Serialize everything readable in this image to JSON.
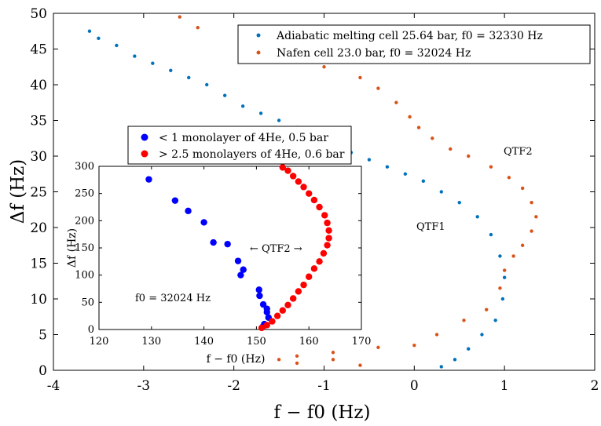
{
  "chart_data": [
    {
      "type": "scatter",
      "xlabel": "f − f0 (Hz)",
      "ylabel": "Δf (Hz)",
      "xlim": [
        -4,
        2
      ],
      "ylim": [
        0,
        50
      ],
      "xticks": [
        "-4",
        "-3",
        "-2",
        "-1",
        "0",
        "1",
        "2"
      ],
      "yticks": [
        "0",
        "5",
        "10",
        "15",
        "20",
        "25",
        "30",
        "35",
        "40",
        "45",
        "50"
      ],
      "legend": {
        "placement": "top-right",
        "entries": [
          "Adiabatic melting cell 25.64 bar, f0 = 32330 Hz",
          "Nafen cell 23.0 bar, f0 = 32024 Hz"
        ]
      },
      "annotations": [
        "QTF1",
        "QTF2"
      ],
      "series": [
        {
          "name": "Adiabatic melting cell 25.64 bar, f0 = 32330 Hz",
          "color": "#0072bd",
          "points": [
            [
              -3.6,
              47.5
            ],
            [
              -3.5,
              46.5
            ],
            [
              -3.3,
              45.5
            ],
            [
              -3.1,
              44
            ],
            [
              -2.9,
              43
            ],
            [
              -2.7,
              42
            ],
            [
              -2.5,
              41
            ],
            [
              -2.3,
              40
            ],
            [
              -2.1,
              38.5
            ],
            [
              -1.9,
              37
            ],
            [
              -1.7,
              36
            ],
            [
              -1.5,
              35
            ],
            [
              -1.3,
              34
            ],
            [
              -1.1,
              33
            ],
            [
              -0.9,
              31.5
            ],
            [
              -0.7,
              30.5
            ],
            [
              -0.5,
              29.5
            ],
            [
              -0.3,
              28.5
            ],
            [
              -0.1,
              27.5
            ],
            [
              0.1,
              26.5
            ],
            [
              0.3,
              25
            ],
            [
              0.5,
              23.5
            ],
            [
              0.7,
              21.5
            ],
            [
              0.85,
              19
            ],
            [
              0.95,
              16
            ],
            [
              1.0,
              13
            ],
            [
              0.98,
              10
            ],
            [
              0.9,
              7
            ],
            [
              0.75,
              5
            ],
            [
              0.6,
              3
            ],
            [
              0.45,
              1.5
            ],
            [
              0.3,
              0.5
            ]
          ]
        },
        {
          "name": "Nafen cell 23.0 bar, f0 = 32024 Hz",
          "color": "#d95319",
          "points": [
            [
              -2.6,
              49.5
            ],
            [
              -2.4,
              48
            ],
            [
              -1.9,
              46
            ],
            [
              -1.4,
              44.5
            ],
            [
              -1.0,
              42.5
            ],
            [
              -0.6,
              41
            ],
            [
              -0.4,
              39.5
            ],
            [
              -0.2,
              37.5
            ],
            [
              -0.05,
              35.5
            ],
            [
              0.05,
              34
            ],
            [
              0.2,
              32.5
            ],
            [
              0.4,
              31
            ],
            [
              0.6,
              30
            ],
            [
              0.85,
              28.5
            ],
            [
              1.05,
              27
            ],
            [
              1.2,
              25.5
            ],
            [
              1.3,
              23.5
            ],
            [
              1.35,
              21.5
            ],
            [
              1.3,
              19.5
            ],
            [
              1.2,
              17.5
            ],
            [
              1.1,
              16
            ],
            [
              1.0,
              14
            ],
            [
              0.95,
              11.5
            ],
            [
              0.8,
              8.5
            ],
            [
              0.55,
              7
            ],
            [
              0.25,
              5
            ],
            [
              0.0,
              3.5
            ],
            [
              -0.4,
              3.2
            ],
            [
              -0.9,
              2.5
            ],
            [
              -1.3,
              2
            ],
            [
              -1.5,
              1.5
            ],
            [
              -1.3,
              1
            ],
            [
              -0.9,
              1.5
            ],
            [
              -0.6,
              0.7
            ]
          ]
        }
      ]
    },
    {
      "type": "scatter",
      "xlabel": "f − f0 (Hz)",
      "ylabel": "Δf (Hz)",
      "xlim": [
        120,
        170
      ],
      "ylim": [
        0,
        300
      ],
      "xticks": [
        "120",
        "130",
        "140",
        "150",
        "160",
        "170"
      ],
      "yticks": [
        "0",
        "50",
        "100",
        "150",
        "200",
        "250",
        "300"
      ],
      "legend": {
        "placement": "top",
        "entries": [
          "< 1 monolayer of 4He, 0.5 bar",
          "> 2.5 monolayers of 4He, 0.6 bar"
        ]
      },
      "annotations": [
        "← QTF2 →",
        "f0 = 32024 Hz"
      ],
      "series": [
        {
          "name": "< 1 monolayer of 4He, 0.5 bar",
          "color": "#0000ff",
          "points": [
            [
              129.5,
              276
            ],
            [
              134.5,
              237
            ],
            [
              137,
              218
            ],
            [
              140,
              197
            ],
            [
              141.8,
              160
            ],
            [
              144.5,
              157
            ],
            [
              146.5,
              126
            ],
            [
              147.5,
              110
            ],
            [
              147,
              100
            ],
            [
              150.5,
              73
            ],
            [
              150.6,
              62
            ],
            [
              151.3,
              46
            ],
            [
              152,
              38
            ],
            [
              152,
              32
            ],
            [
              152.3,
              22
            ],
            [
              151.5,
              10
            ],
            [
              151.2,
              5
            ]
          ]
        },
        {
          "name": "> 2.5 monolayers of 4He, 0.6 bar",
          "color": "#ff0000",
          "points": [
            [
              151,
              3
            ],
            [
              152,
              8
            ],
            [
              153,
              15
            ],
            [
              154,
              25
            ],
            [
              155,
              35
            ],
            [
              156,
              45
            ],
            [
              157,
              57
            ],
            [
              158,
              70
            ],
            [
              159,
              82
            ],
            [
              160,
              97
            ],
            [
              161,
              112
            ],
            [
              162,
              125
            ],
            [
              162.8,
              140
            ],
            [
              163.5,
              155
            ],
            [
              163.8,
              168
            ],
            [
              163.8,
              182
            ],
            [
              163.5,
              196
            ],
            [
              163,
              210
            ],
            [
              162,
              225
            ],
            [
              161,
              238
            ],
            [
              160,
              250
            ],
            [
              159,
              262
            ],
            [
              158,
              272
            ],
            [
              157,
              282
            ],
            [
              156,
              292
            ],
            [
              155,
              298
            ]
          ]
        }
      ]
    }
  ]
}
